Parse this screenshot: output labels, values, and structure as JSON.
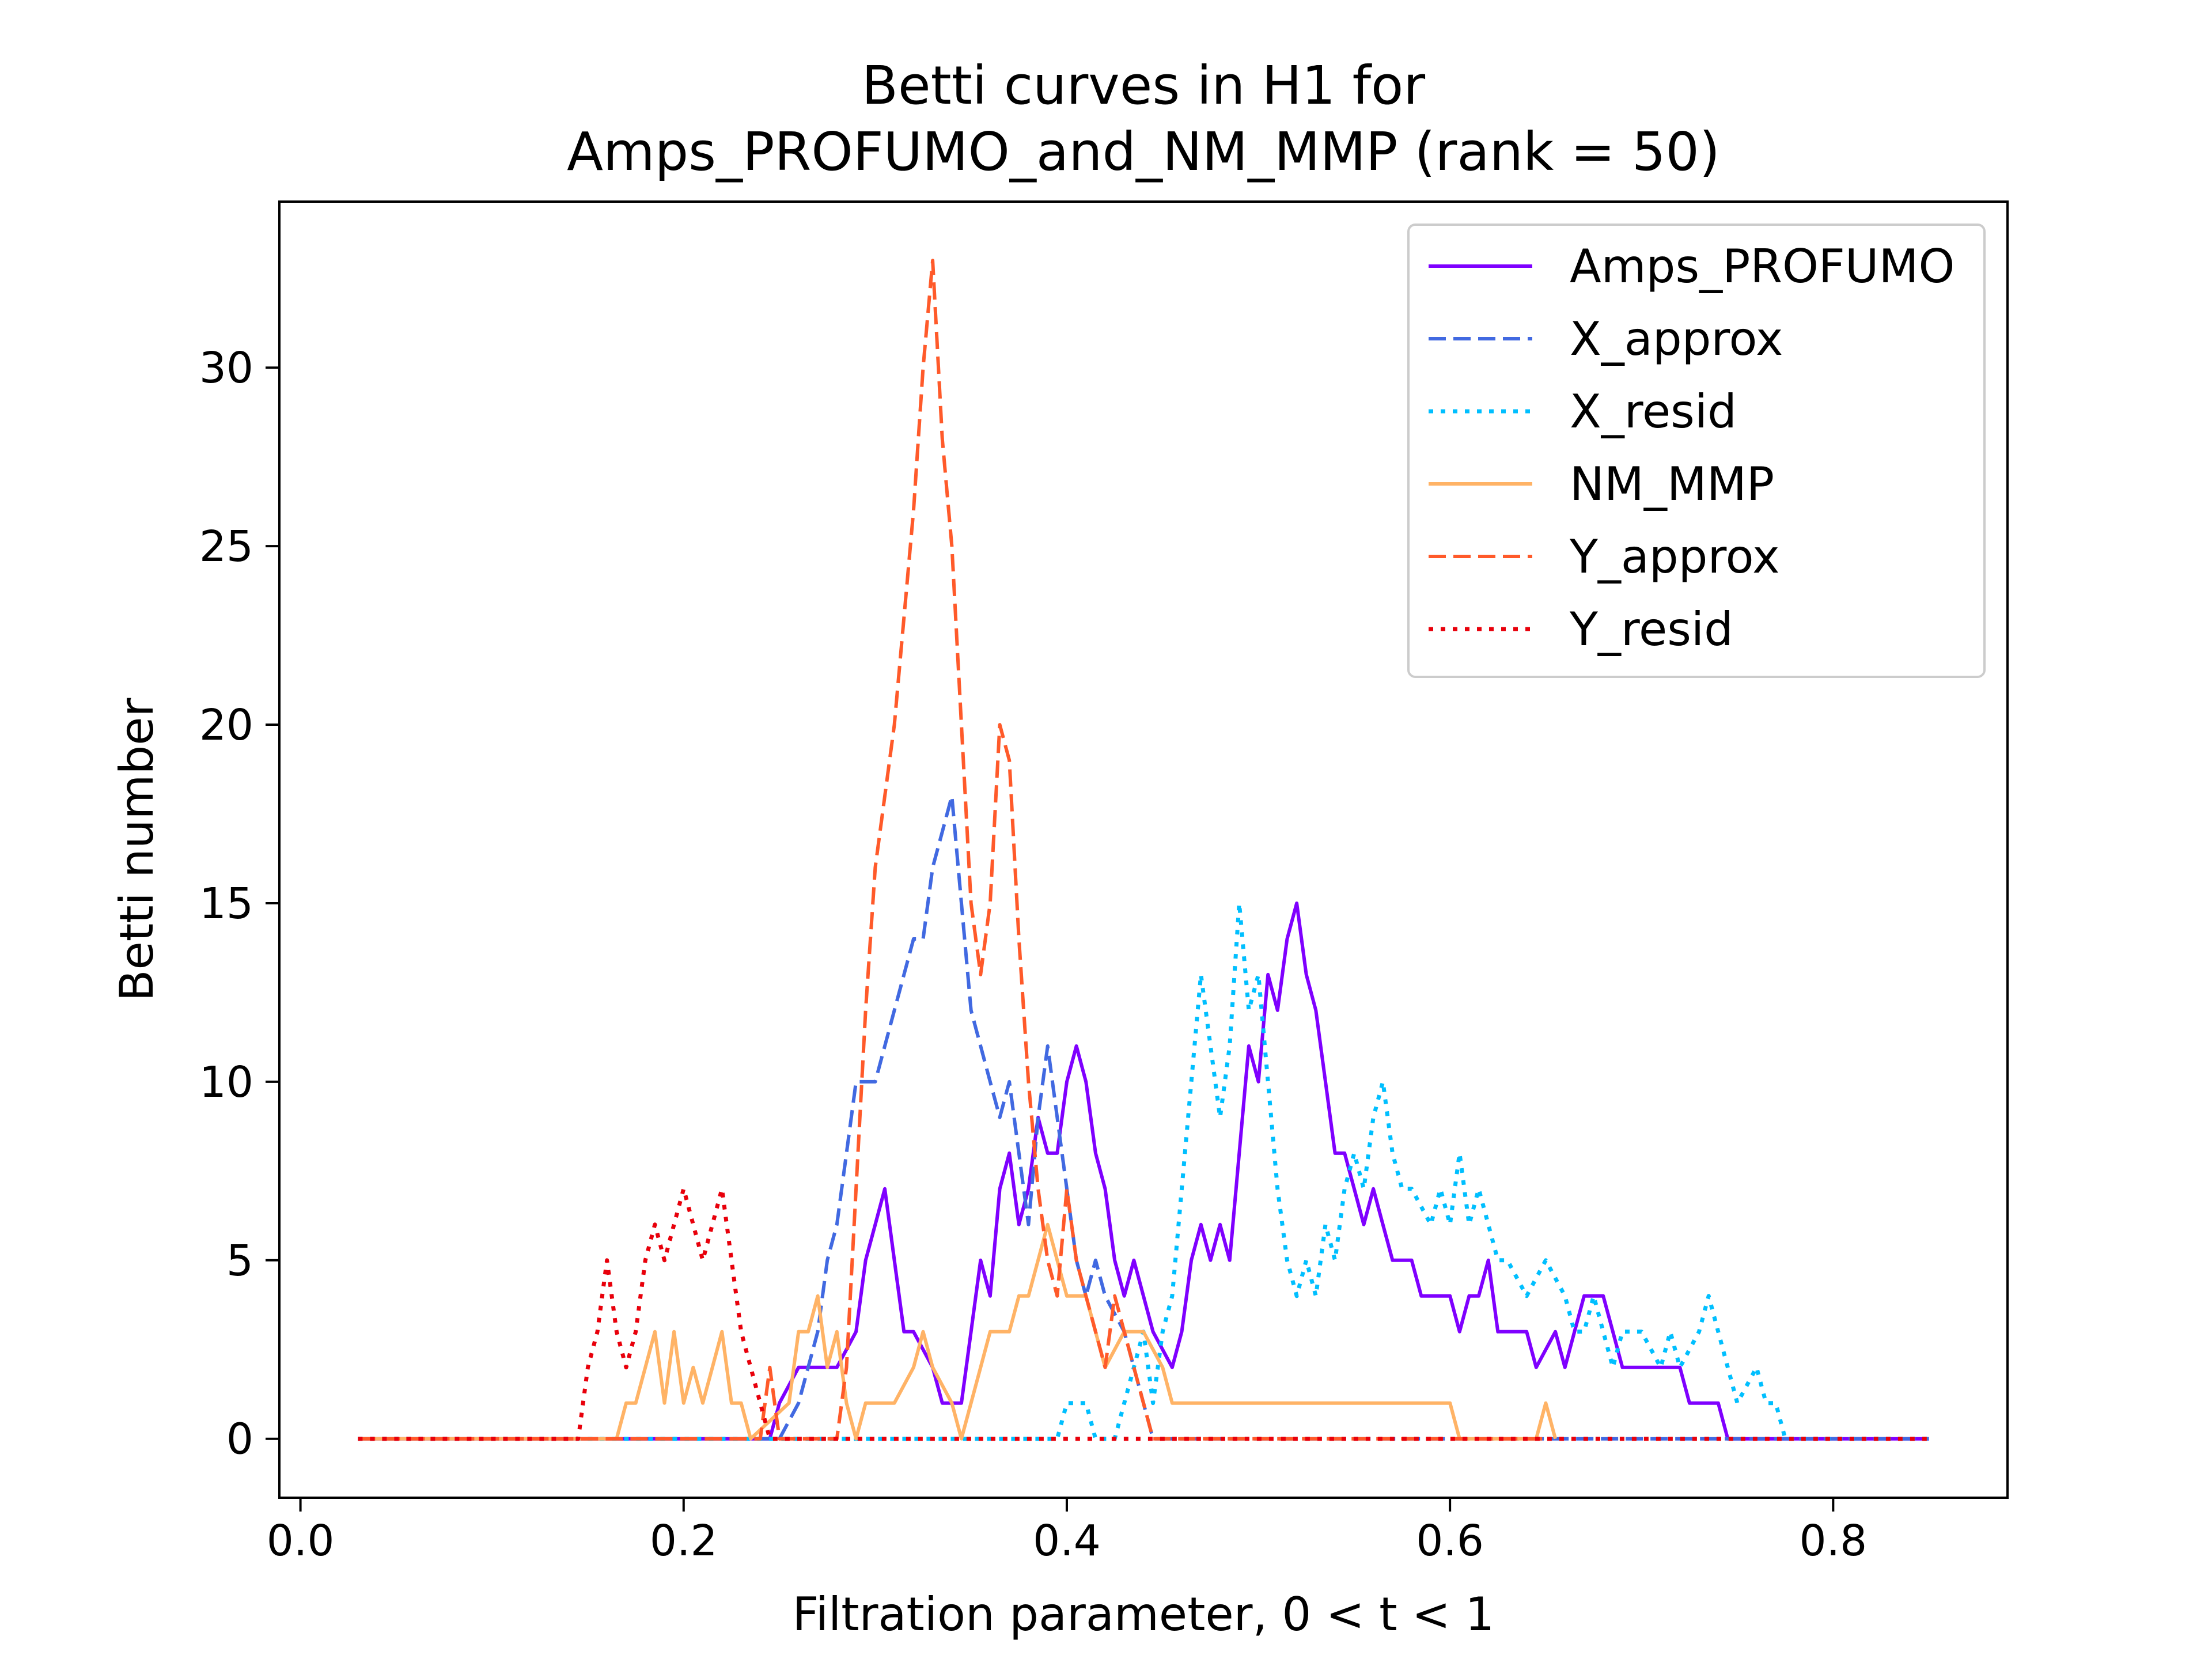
{
  "chart_data": {
    "type": "line",
    "title": "Betti curves in H1 for",
    "subtitle": "Amps_PROFUMO_and_NM_MMP (rank = 50)",
    "xlabel": "Filtration parameter, 0 < t < 1",
    "ylabel": "Betti number",
    "xlim": [
      -0.011,
      0.891
    ],
    "ylim": [
      -1.65,
      34.65
    ],
    "xticks": [
      0.0,
      0.2,
      0.4,
      0.6,
      0.8
    ],
    "xtick_labels": [
      "0.0",
      "0.2",
      "0.4",
      "0.6",
      "0.8"
    ],
    "yticks": [
      0,
      5,
      10,
      15,
      20,
      25,
      30
    ],
    "ytick_labels": [
      "0",
      "5",
      "10",
      "15",
      "20",
      "25",
      "30"
    ],
    "grid": false,
    "legend_position": "top-right",
    "series": [
      {
        "name": "Amps_PROFUMO",
        "color": "#7f00ff",
        "style": "solid",
        "points": [
          [
            0.03,
            0
          ],
          [
            0.245,
            0
          ],
          [
            0.25,
            1
          ],
          [
            0.26,
            2
          ],
          [
            0.28,
            2
          ],
          [
            0.29,
            3
          ],
          [
            0.295,
            5
          ],
          [
            0.3,
            6
          ],
          [
            0.305,
            7
          ],
          [
            0.31,
            5
          ],
          [
            0.315,
            3
          ],
          [
            0.32,
            3
          ],
          [
            0.33,
            2
          ],
          [
            0.335,
            1
          ],
          [
            0.345,
            1
          ],
          [
            0.35,
            3
          ],
          [
            0.355,
            5
          ],
          [
            0.36,
            4
          ],
          [
            0.365,
            7
          ],
          [
            0.37,
            8
          ],
          [
            0.375,
            6
          ],
          [
            0.38,
            7
          ],
          [
            0.385,
            9
          ],
          [
            0.39,
            8
          ],
          [
            0.395,
            8
          ],
          [
            0.4,
            10
          ],
          [
            0.405,
            11
          ],
          [
            0.41,
            10
          ],
          [
            0.415,
            8
          ],
          [
            0.42,
            7
          ],
          [
            0.425,
            5
          ],
          [
            0.43,
            4
          ],
          [
            0.435,
            5
          ],
          [
            0.44,
            4
          ],
          [
            0.445,
            3
          ],
          [
            0.455,
            2
          ],
          [
            0.46,
            3
          ],
          [
            0.465,
            5
          ],
          [
            0.47,
            6
          ],
          [
            0.475,
            5
          ],
          [
            0.48,
            6
          ],
          [
            0.485,
            5
          ],
          [
            0.49,
            8
          ],
          [
            0.495,
            11
          ],
          [
            0.5,
            10
          ],
          [
            0.505,
            13
          ],
          [
            0.51,
            12
          ],
          [
            0.515,
            14
          ],
          [
            0.52,
            15
          ],
          [
            0.525,
            13
          ],
          [
            0.53,
            12
          ],
          [
            0.535,
            10
          ],
          [
            0.54,
            8
          ],
          [
            0.545,
            8
          ],
          [
            0.55,
            7
          ],
          [
            0.555,
            6
          ],
          [
            0.56,
            7
          ],
          [
            0.565,
            6
          ],
          [
            0.57,
            5
          ],
          [
            0.58,
            5
          ],
          [
            0.585,
            4
          ],
          [
            0.6,
            4
          ],
          [
            0.605,
            3
          ],
          [
            0.61,
            4
          ],
          [
            0.615,
            4
          ],
          [
            0.62,
            5
          ],
          [
            0.625,
            3
          ],
          [
            0.64,
            3
          ],
          [
            0.645,
            2
          ],
          [
            0.655,
            3
          ],
          [
            0.66,
            2
          ],
          [
            0.665,
            3
          ],
          [
            0.67,
            4
          ],
          [
            0.68,
            4
          ],
          [
            0.685,
            3
          ],
          [
            0.69,
            2
          ],
          [
            0.72,
            2
          ],
          [
            0.725,
            1
          ],
          [
            0.74,
            1
          ],
          [
            0.745,
            0
          ],
          [
            0.85,
            0
          ]
        ]
      },
      {
        "name": "X_approx",
        "color": "#4169e1",
        "style": "dashed",
        "points": [
          [
            0.03,
            0
          ],
          [
            0.25,
            0
          ],
          [
            0.26,
            1
          ],
          [
            0.27,
            3
          ],
          [
            0.275,
            5
          ],
          [
            0.28,
            6
          ],
          [
            0.285,
            8
          ],
          [
            0.29,
            10
          ],
          [
            0.3,
            10
          ],
          [
            0.305,
            11
          ],
          [
            0.31,
            12
          ],
          [
            0.315,
            13
          ],
          [
            0.32,
            14
          ],
          [
            0.325,
            14
          ],
          [
            0.33,
            16
          ],
          [
            0.335,
            17
          ],
          [
            0.34,
            18
          ],
          [
            0.345,
            15
          ],
          [
            0.35,
            12
          ],
          [
            0.355,
            11
          ],
          [
            0.36,
            10
          ],
          [
            0.365,
            9
          ],
          [
            0.37,
            10
          ],
          [
            0.375,
            8
          ],
          [
            0.38,
            6
          ],
          [
            0.385,
            9
          ],
          [
            0.39,
            11
          ],
          [
            0.395,
            9
          ],
          [
            0.4,
            7
          ],
          [
            0.405,
            5
          ],
          [
            0.41,
            4
          ],
          [
            0.415,
            5
          ],
          [
            0.42,
            4
          ],
          [
            0.43,
            3
          ],
          [
            0.44,
            1
          ],
          [
            0.445,
            0
          ],
          [
            0.65,
            0
          ],
          [
            0.85,
            0
          ]
        ]
      },
      {
        "name": "X_resid",
        "color": "#00bfff",
        "style": "dotted",
        "points": [
          [
            0.03,
            0
          ],
          [
            0.395,
            0
          ],
          [
            0.4,
            1
          ],
          [
            0.41,
            1
          ],
          [
            0.415,
            0
          ],
          [
            0.425,
            0
          ],
          [
            0.43,
            1
          ],
          [
            0.435,
            2
          ],
          [
            0.44,
            3
          ],
          [
            0.445,
            1
          ],
          [
            0.45,
            3
          ],
          [
            0.455,
            4
          ],
          [
            0.46,
            7
          ],
          [
            0.465,
            10
          ],
          [
            0.47,
            13
          ],
          [
            0.475,
            11
          ],
          [
            0.48,
            9
          ],
          [
            0.485,
            11
          ],
          [
            0.49,
            15
          ],
          [
            0.495,
            12
          ],
          [
            0.5,
            13
          ],
          [
            0.505,
            10
          ],
          [
            0.51,
            7
          ],
          [
            0.515,
            5
          ],
          [
            0.52,
            4
          ],
          [
            0.525,
            5
          ],
          [
            0.53,
            4
          ],
          [
            0.535,
            6
          ],
          [
            0.54,
            5
          ],
          [
            0.545,
            7
          ],
          [
            0.55,
            8
          ],
          [
            0.555,
            7
          ],
          [
            0.56,
            9
          ],
          [
            0.565,
            10
          ],
          [
            0.57,
            8
          ],
          [
            0.575,
            7
          ],
          [
            0.58,
            7
          ],
          [
            0.59,
            6
          ],
          [
            0.595,
            7
          ],
          [
            0.6,
            6
          ],
          [
            0.605,
            8
          ],
          [
            0.61,
            6
          ],
          [
            0.615,
            7
          ],
          [
            0.62,
            6
          ],
          [
            0.625,
            5
          ],
          [
            0.63,
            5
          ],
          [
            0.64,
            4
          ],
          [
            0.65,
            5
          ],
          [
            0.66,
            4
          ],
          [
            0.665,
            3
          ],
          [
            0.67,
            3
          ],
          [
            0.675,
            4
          ],
          [
            0.68,
            3
          ],
          [
            0.685,
            2
          ],
          [
            0.69,
            3
          ],
          [
            0.7,
            3
          ],
          [
            0.71,
            2
          ],
          [
            0.715,
            3
          ],
          [
            0.72,
            2
          ],
          [
            0.73,
            3
          ],
          [
            0.735,
            4
          ],
          [
            0.74,
            3
          ],
          [
            0.745,
            2
          ],
          [
            0.75,
            1
          ],
          [
            0.76,
            2
          ],
          [
            0.765,
            1
          ],
          [
            0.77,
            1
          ],
          [
            0.775,
            0
          ],
          [
            0.85,
            0
          ]
        ]
      },
      {
        "name": "NM_MMP",
        "color": "#ffb366",
        "style": "solid",
        "points": [
          [
            0.03,
            0
          ],
          [
            0.165,
            0
          ],
          [
            0.17,
            1
          ],
          [
            0.175,
            1
          ],
          [
            0.18,
            2
          ],
          [
            0.185,
            3
          ],
          [
            0.19,
            1
          ],
          [
            0.195,
            3
          ],
          [
            0.2,
            1
          ],
          [
            0.205,
            2
          ],
          [
            0.21,
            1
          ],
          [
            0.215,
            2
          ],
          [
            0.22,
            3
          ],
          [
            0.225,
            1
          ],
          [
            0.23,
            1
          ],
          [
            0.235,
            0
          ],
          [
            0.255,
            1
          ],
          [
            0.26,
            3
          ],
          [
            0.265,
            3
          ],
          [
            0.27,
            4
          ],
          [
            0.275,
            2
          ],
          [
            0.28,
            3
          ],
          [
            0.285,
            1
          ],
          [
            0.29,
            0
          ],
          [
            0.295,
            1
          ],
          [
            0.3,
            1
          ],
          [
            0.31,
            1
          ],
          [
            0.32,
            2
          ],
          [
            0.325,
            3
          ],
          [
            0.33,
            2
          ],
          [
            0.34,
            1
          ],
          [
            0.345,
            0
          ],
          [
            0.35,
            1
          ],
          [
            0.355,
            2
          ],
          [
            0.36,
            3
          ],
          [
            0.37,
            3
          ],
          [
            0.375,
            4
          ],
          [
            0.38,
            4
          ],
          [
            0.385,
            5
          ],
          [
            0.39,
            6
          ],
          [
            0.395,
            5
          ],
          [
            0.4,
            4
          ],
          [
            0.41,
            4
          ],
          [
            0.42,
            2
          ],
          [
            0.43,
            3
          ],
          [
            0.44,
            3
          ],
          [
            0.45,
            2
          ],
          [
            0.455,
            1
          ],
          [
            0.6,
            1
          ],
          [
            0.605,
            0
          ],
          [
            0.645,
            0
          ],
          [
            0.65,
            1
          ],
          [
            0.655,
            0
          ]
        ]
      },
      {
        "name": "Y_approx",
        "color": "#ff5a2a",
        "style": "dashed",
        "points": [
          [
            0.03,
            0
          ],
          [
            0.24,
            0
          ],
          [
            0.245,
            2
          ],
          [
            0.25,
            0
          ],
          [
            0.28,
            0
          ],
          [
            0.285,
            2
          ],
          [
            0.29,
            7
          ],
          [
            0.295,
            12
          ],
          [
            0.3,
            16
          ],
          [
            0.305,
            18
          ],
          [
            0.31,
            20
          ],
          [
            0.315,
            23
          ],
          [
            0.32,
            26
          ],
          [
            0.325,
            30
          ],
          [
            0.33,
            33
          ],
          [
            0.335,
            28
          ],
          [
            0.34,
            25
          ],
          [
            0.345,
            20
          ],
          [
            0.35,
            15
          ],
          [
            0.355,
            13
          ],
          [
            0.36,
            15
          ],
          [
            0.365,
            20
          ],
          [
            0.37,
            19
          ],
          [
            0.375,
            14
          ],
          [
            0.38,
            10
          ],
          [
            0.385,
            7
          ],
          [
            0.39,
            5
          ],
          [
            0.395,
            4
          ],
          [
            0.4,
            7
          ],
          [
            0.405,
            5
          ],
          [
            0.41,
            4
          ],
          [
            0.415,
            3
          ],
          [
            0.42,
            2
          ],
          [
            0.425,
            4
          ],
          [
            0.43,
            3
          ],
          [
            0.435,
            2
          ],
          [
            0.44,
            1
          ],
          [
            0.445,
            0
          ],
          [
            0.65,
            0
          ]
        ]
      },
      {
        "name": "Y_resid",
        "color": "#e8000b",
        "style": "dotted",
        "points": [
          [
            0.03,
            0
          ],
          [
            0.145,
            0
          ],
          [
            0.15,
            2
          ],
          [
            0.155,
            3
          ],
          [
            0.16,
            5
          ],
          [
            0.165,
            3
          ],
          [
            0.17,
            2
          ],
          [
            0.175,
            3
          ],
          [
            0.18,
            5
          ],
          [
            0.185,
            6
          ],
          [
            0.19,
            5
          ],
          [
            0.195,
            6
          ],
          [
            0.2,
            7
          ],
          [
            0.205,
            6
          ],
          [
            0.21,
            5
          ],
          [
            0.215,
            6
          ],
          [
            0.22,
            7
          ],
          [
            0.225,
            5
          ],
          [
            0.23,
            3
          ],
          [
            0.235,
            2
          ],
          [
            0.24,
            1
          ],
          [
            0.245,
            0
          ],
          [
            0.85,
            0
          ]
        ]
      }
    ]
  }
}
